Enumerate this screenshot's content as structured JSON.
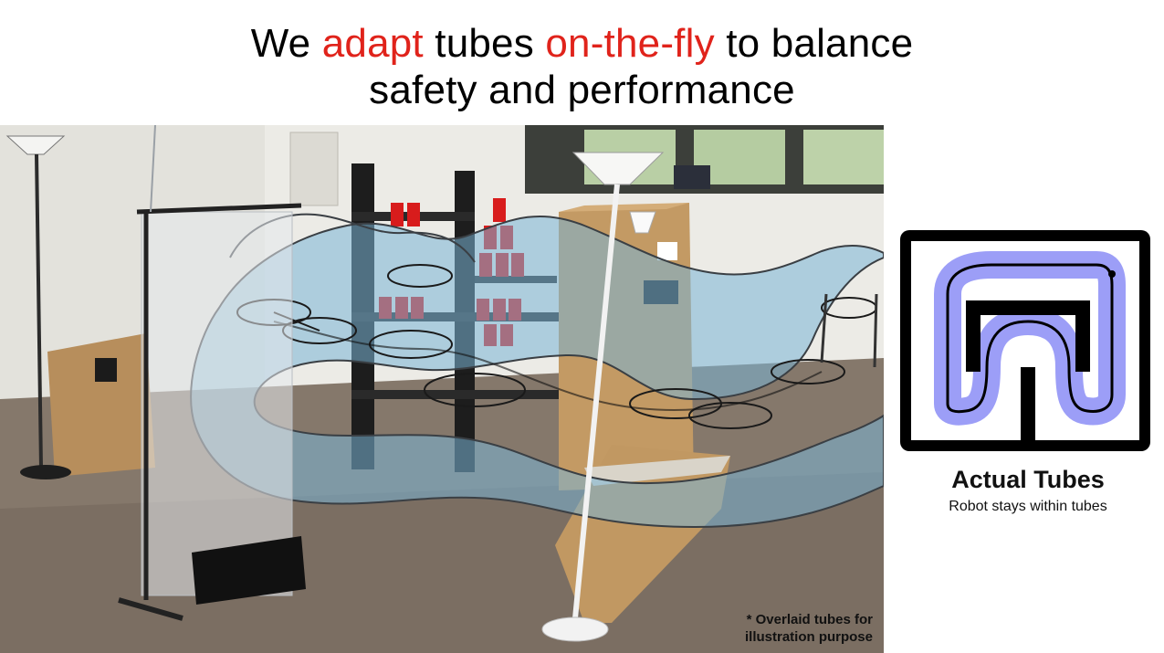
{
  "slide": {
    "title_parts": {
      "p1": "We ",
      "h1": "adapt",
      "p2": " tubes ",
      "h2": "on-the-fly",
      "p3": " to balance",
      "line2": "safety and performance"
    },
    "highlight_color": "#e0231b",
    "photo_note_line1": "* Overlaid tubes for",
    "photo_note_line2": "illustration purpose",
    "panel_title": "Actual Tubes",
    "panel_subtitle": "Robot stays within tubes",
    "tube_color": "#7ab4d6",
    "map_tube_color": "#4a4ef0",
    "icons": [
      "quadrotor-drone",
      "floor-lamp",
      "red-cup-stack"
    ]
  }
}
